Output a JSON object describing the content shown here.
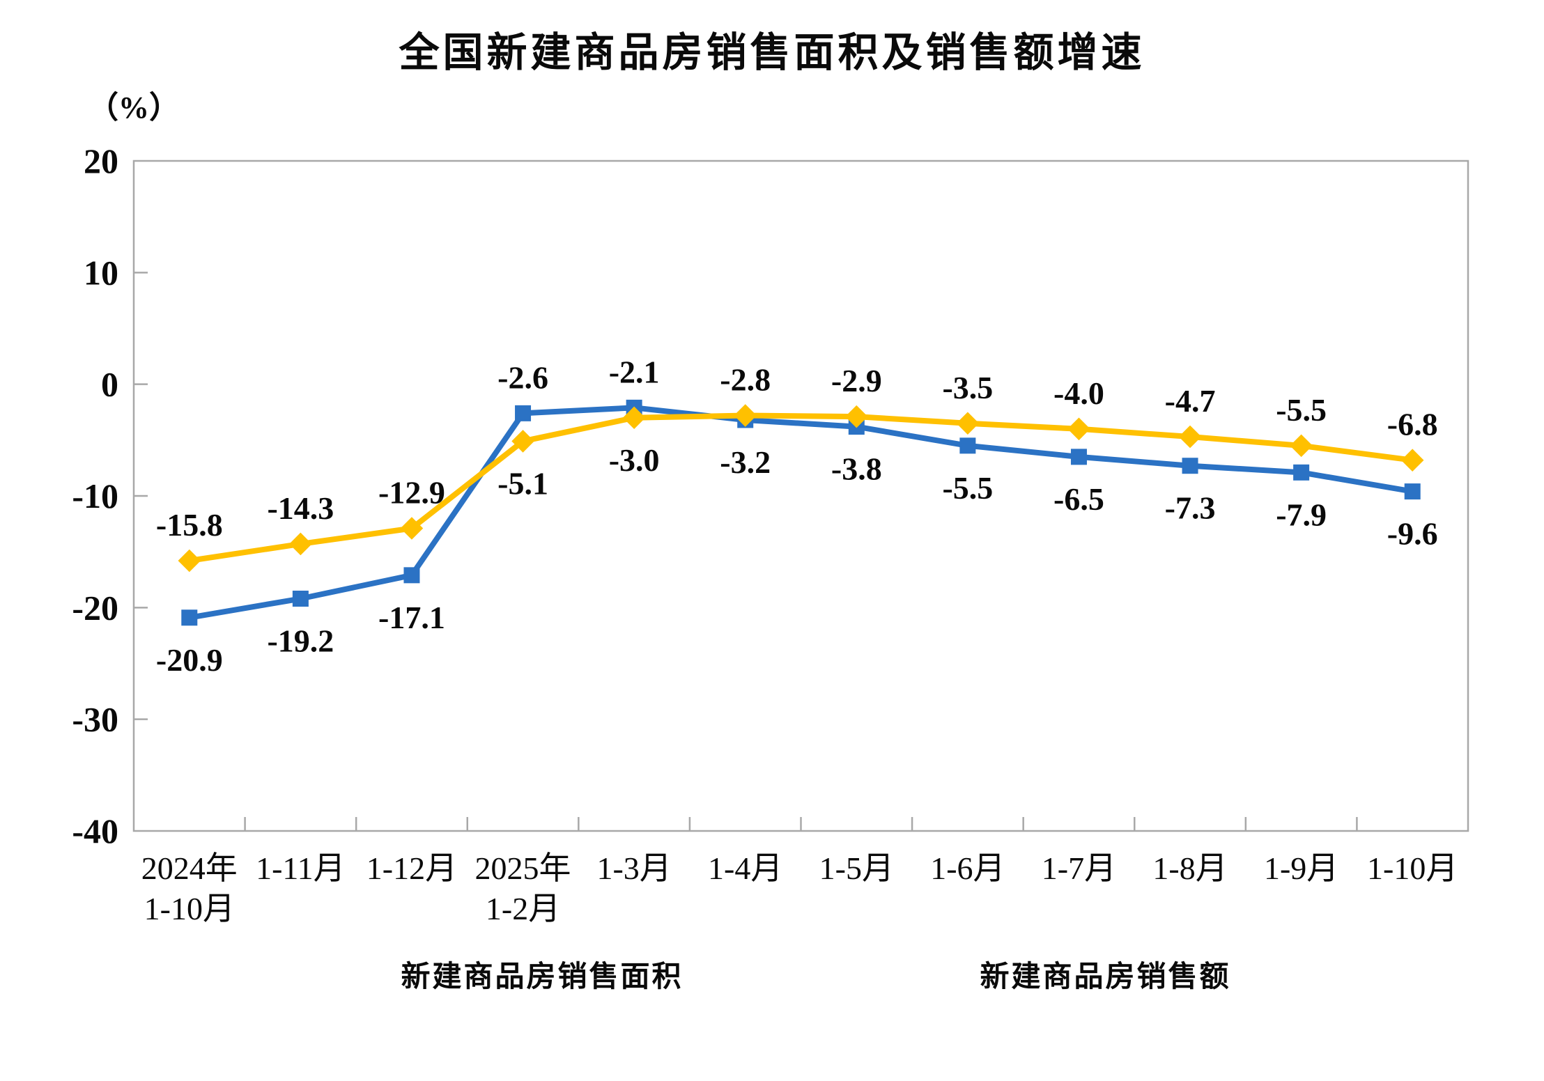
{
  "title": "全国新建商品房销售面积及销售额增速",
  "y_axis_unit_label": "（%）",
  "colors": {
    "sales_area_line": "#FFC000",
    "sales_value_line": "#2B72C4",
    "axis": "#A8A8A8",
    "label_text": "#0a0a0a"
  },
  "chart_data": {
    "type": "line",
    "title": "全国新建商品房销售面积及销售额增速",
    "xlabel": "",
    "ylabel": "（%）",
    "ylim": [
      -40,
      20
    ],
    "y_ticks": [
      20,
      10,
      0,
      -10,
      -20,
      -30,
      -40
    ],
    "grid": false,
    "legend_position": "bottom",
    "categories": [
      "2024年1-10月",
      "1-11月",
      "1-12月",
      "2025年1-2月",
      "1-3月",
      "1-4月",
      "1-5月",
      "1-6月",
      "1-7月",
      "1-8月",
      "1-9月",
      "1-10月"
    ],
    "category_lines": [
      [
        "2024年",
        "1-10月"
      ],
      [
        "1-11月",
        ""
      ],
      [
        "1-12月",
        ""
      ],
      [
        "2025年",
        "1-2月"
      ],
      [
        "1-3月",
        ""
      ],
      [
        "1-4月",
        ""
      ],
      [
        "1-5月",
        ""
      ],
      [
        "1-6月",
        ""
      ],
      [
        "1-7月",
        ""
      ],
      [
        "1-8月",
        ""
      ],
      [
        "1-9月",
        ""
      ],
      [
        "1-10月",
        ""
      ]
    ],
    "series": [
      {
        "name": "新建商品房销售面积",
        "marker": "diamond",
        "color": "#FFC000",
        "values": [
          -15.8,
          -14.3,
          -12.9,
          -5.1,
          -3.0,
          -2.8,
          -2.9,
          -3.5,
          -4.0,
          -4.7,
          -5.5,
          -6.8
        ]
      },
      {
        "name": "新建商品房销售额",
        "marker": "square",
        "color": "#2B72C4",
        "values": [
          -20.9,
          -19.2,
          -17.1,
          -2.6,
          -2.1,
          -3.2,
          -3.8,
          -5.5,
          -6.5,
          -7.3,
          -7.9,
          -9.6
        ]
      }
    ]
  }
}
